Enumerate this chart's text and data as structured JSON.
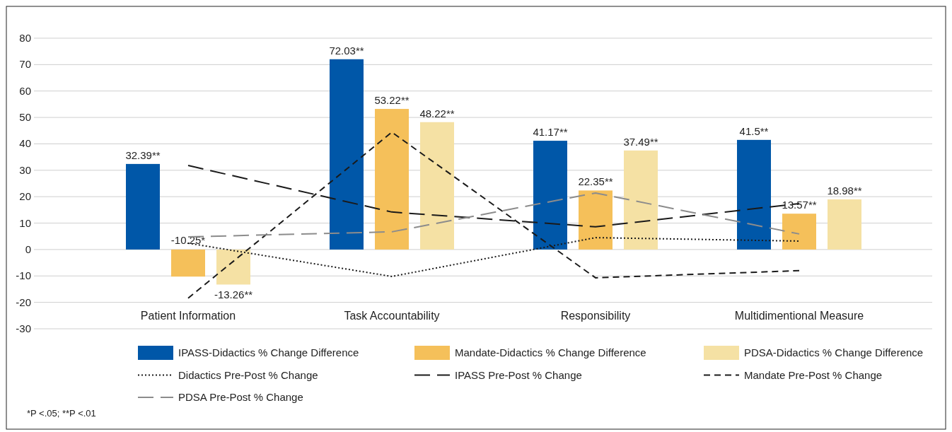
{
  "chart_data": {
    "type": "bar",
    "categories": [
      "Patient Information",
      "Task Accountability",
      "Responsibility",
      "Multidimentional Measure"
    ],
    "series": [
      {
        "name": "IPASS-Didactics % Change Difference",
        "color": "#0057a8",
        "values": [
          32.39,
          72.03,
          41.17,
          41.5
        ],
        "value_labels": [
          "32.39**",
          "72.03**",
          "41.17**",
          "41.5**"
        ]
      },
      {
        "name": "Mandate-Didactics % Change Difference",
        "color": "#f5c05a",
        "values": [
          -10.25,
          53.22,
          22.35,
          13.57
        ],
        "value_labels": [
          "-10.25*",
          "53.22**",
          "22.35**",
          "13.57**"
        ]
      },
      {
        "name": "PDSA-Didactics % Change Difference",
        "color": "#f5e1a4",
        "values": [
          -13.26,
          48.22,
          37.49,
          18.98
        ],
        "value_labels": [
          "-13.26**",
          "48.22**",
          "37.49**",
          "18.98**"
        ]
      },
      {
        "name": "Didactics Pre-Post % Change",
        "type": "line",
        "color": "#1a1a1a",
        "line_style": "dotted",
        "values": [
          2.4,
          -10.2,
          4.5,
          3.2
        ]
      },
      {
        "name": "IPASS Pre-Post % Change",
        "type": "line",
        "color": "#1a1a1a",
        "line_style": "dashed",
        "values": [
          31.8,
          14.2,
          8.6,
          17.4
        ]
      },
      {
        "name": "Mandate Pre-Post % Change",
        "type": "line",
        "color": "#1a1a1a",
        "line_style": "dashed",
        "values": [
          -18.4,
          44.4,
          -10.7,
          -8.0
        ]
      },
      {
        "name": "PDSA Pre-Post % Change",
        "type": "line",
        "color": "#8c8c8c",
        "line_style": "dashed",
        "values": [
          4.8,
          6.7,
          21.4,
          5.9
        ]
      }
    ],
    "ylim": [
      -30,
      80
    ],
    "yticks": [
      -30,
      -20,
      -10,
      0,
      10,
      20,
      30,
      40,
      50,
      60,
      70,
      80
    ],
    "grid": "y",
    "legend": "bottom",
    "annotations": [
      "*P <.05; **P <.01"
    ]
  }
}
